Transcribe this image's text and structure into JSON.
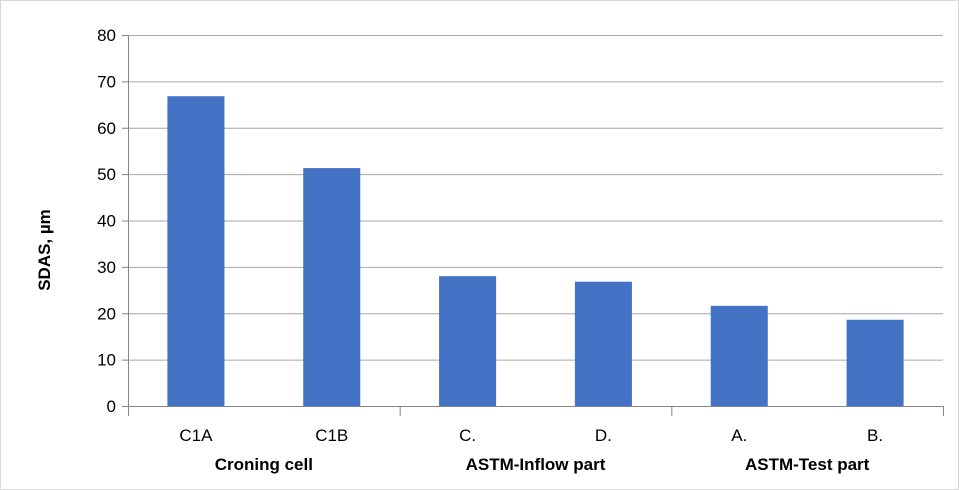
{
  "chart_data": {
    "type": "bar",
    "title": "",
    "xlabel": "",
    "ylabel": "SDAS, µm",
    "ylim": [
      0,
      80
    ],
    "yticks": [
      0,
      10,
      20,
      30,
      40,
      50,
      60,
      70,
      80
    ],
    "grid": true,
    "legend": "none",
    "bar_color": "#4472C4",
    "categories": [
      "C1A",
      "C1B",
      "C.",
      "D.",
      "A.",
      "B."
    ],
    "values": [
      66.8,
      51.3,
      28.0,
      26.8,
      21.6,
      18.6
    ],
    "groups": [
      {
        "label": "Croning cell",
        "categories": [
          "C1A",
          "C1B"
        ]
      },
      {
        "label": "ASTM-Inflow part",
        "categories": [
          "C.",
          "D."
        ]
      },
      {
        "label": "ASTM-Test part",
        "categories": [
          "A.",
          "B."
        ]
      }
    ]
  }
}
